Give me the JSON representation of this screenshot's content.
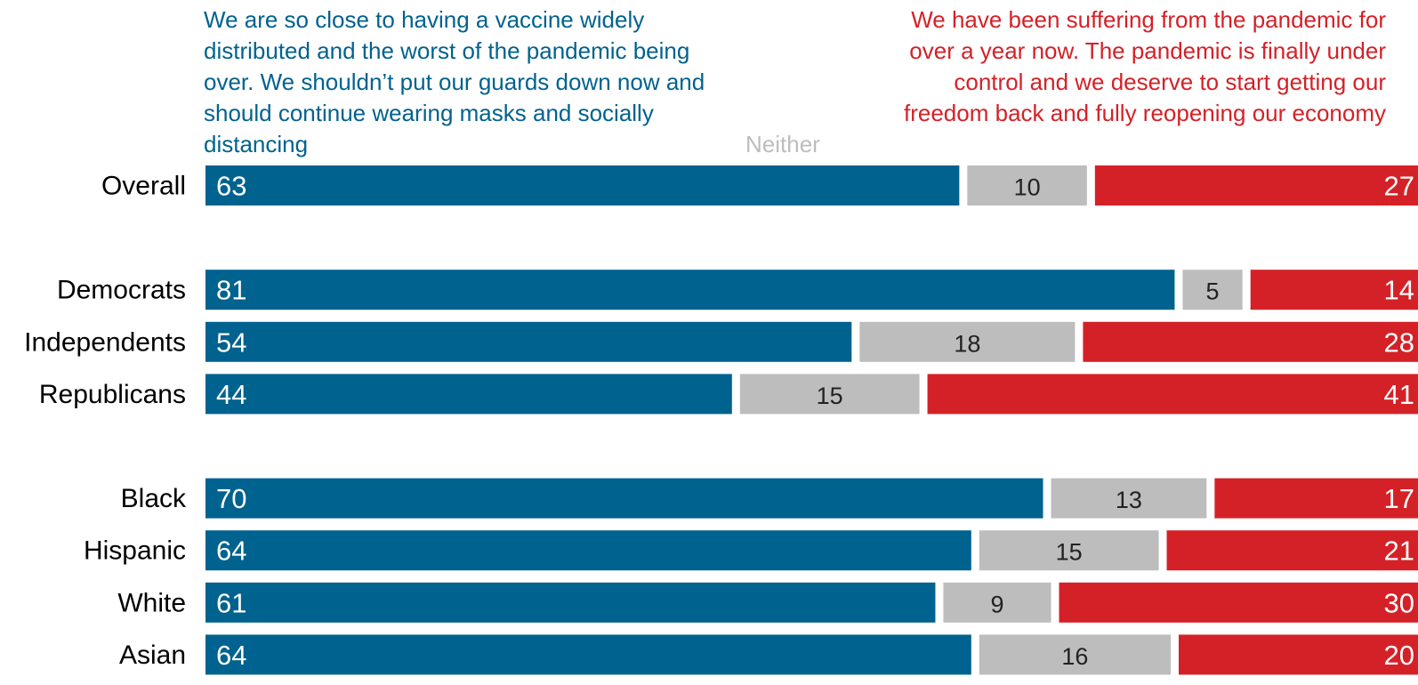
{
  "headers": {
    "left": "We are so close to having a vaccine widely distributed and the worst of the pandemic being over. We shouldn’t put our guards down now and should continue wearing masks and socially distancing",
    "middle": "Neither",
    "right": "We have been suffering from the pandemic for over a year now. The pandemic is finally under control and we deserve to start getting our freedom back and fully reopening our economy"
  },
  "colors": {
    "left": "#00628e",
    "middle": "#bdbdbd",
    "right": "#d42127",
    "label": "#000000"
  },
  "chart_data": {
    "type": "bar",
    "orientation": "horizontal",
    "stacked": true,
    "categories": [
      "Overall",
      "Democrats",
      "Independents",
      "Republicans",
      "Black",
      "Hispanic",
      "White",
      "Asian"
    ],
    "groups": [
      [
        "Overall"
      ],
      [
        "Democrats",
        "Independents",
        "Republicans"
      ],
      [
        "Black",
        "Hispanic",
        "White",
        "Asian"
      ]
    ],
    "series": [
      {
        "key": "left",
        "values": [
          63,
          81,
          54,
          44,
          70,
          64,
          61,
          64
        ]
      },
      {
        "key": "middle",
        "name": "Neither",
        "values": [
          10,
          5,
          18,
          15,
          13,
          15,
          9,
          16
        ]
      },
      {
        "key": "right",
        "values": [
          27,
          14,
          28,
          41,
          17,
          21,
          30,
          20
        ]
      }
    ],
    "xlim": [
      0,
      100
    ],
    "grid": false
  }
}
